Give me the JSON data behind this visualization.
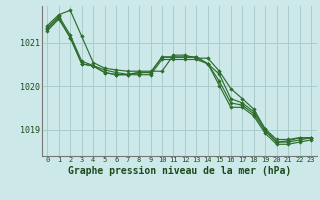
{
  "title": "Graphe pression niveau de la mer (hPa)",
  "bg_color": "#cce8e8",
  "grid_color": "#aacccc",
  "line_color": "#2d6e2d",
  "marker_color": "#2d6e2d",
  "tick_color": "#1a4a1a",
  "ylabel_ticks": [
    1019,
    1020,
    1021
  ],
  "xlim": [
    -0.5,
    23.5
  ],
  "ylim": [
    1018.4,
    1021.85
  ],
  "series": [
    [
      1021.4,
      1021.65,
      1021.75,
      1021.15,
      1020.55,
      1020.42,
      1020.38,
      1020.35,
      1020.35,
      1020.35,
      1020.35,
      1020.72,
      1020.72,
      1020.65,
      1020.65,
      1020.35,
      1019.95,
      1019.72,
      1019.48,
      1019.02,
      1018.78,
      1018.78,
      1018.82,
      1018.82
    ],
    [
      1021.35,
      1021.62,
      1021.18,
      1020.58,
      1020.48,
      1020.38,
      1020.32,
      1020.28,
      1020.32,
      1020.32,
      1020.68,
      1020.68,
      1020.68,
      1020.68,
      1020.52,
      1020.28,
      1019.72,
      1019.62,
      1019.42,
      1019.02,
      1018.72,
      1018.75,
      1018.82,
      1018.82
    ],
    [
      1021.32,
      1021.58,
      1021.12,
      1020.52,
      1020.47,
      1020.32,
      1020.27,
      1020.27,
      1020.32,
      1020.32,
      1020.67,
      1020.67,
      1020.67,
      1020.67,
      1020.52,
      1020.12,
      1019.62,
      1019.57,
      1019.37,
      1018.97,
      1018.72,
      1018.72,
      1018.77,
      1018.82
    ],
    [
      1021.28,
      1021.55,
      1021.12,
      1020.52,
      1020.47,
      1020.32,
      1020.27,
      1020.27,
      1020.27,
      1020.27,
      1020.62,
      1020.62,
      1020.62,
      1020.62,
      1020.52,
      1020.02,
      1019.52,
      1019.52,
      1019.32,
      1018.92,
      1018.67,
      1018.67,
      1018.72,
      1018.77
    ]
  ],
  "x_ticks": [
    0,
    1,
    2,
    3,
    4,
    5,
    6,
    7,
    8,
    9,
    10,
    11,
    12,
    13,
    14,
    15,
    16,
    17,
    18,
    19,
    20,
    21,
    22,
    23
  ],
  "title_fontsize": 7,
  "ytick_fontsize": 6,
  "xtick_fontsize": 5
}
